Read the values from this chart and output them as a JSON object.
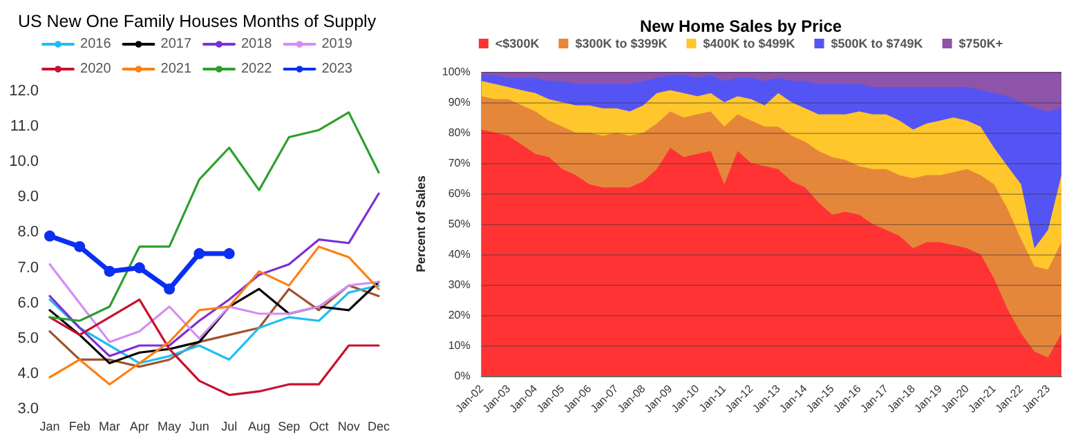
{
  "chart_data": [
    {
      "type": "line",
      "title": "US New One Family Houses Months of Supply",
      "categories": [
        "Jan",
        "Feb",
        "Mar",
        "Apr",
        "May",
        "Jun",
        "Jul",
        "Aug",
        "Sep",
        "Oct",
        "Nov",
        "Dec"
      ],
      "ylim": [
        3,
        12
      ],
      "yticks": [
        {
          "value": 3,
          "label": "3.0"
        },
        {
          "value": 4,
          "label": "4.0"
        },
        {
          "value": 5,
          "label": "5.0"
        },
        {
          "value": 6,
          "label": "6.0"
        },
        {
          "value": 7,
          "label": "7.0"
        },
        {
          "value": 8,
          "label": "8.0"
        },
        {
          "value": 9,
          "label": "9.0"
        },
        {
          "value": 10,
          "label": "10.0"
        },
        {
          "value": 11,
          "label": "11.0"
        },
        {
          "value": 12,
          "label": "12.0"
        }
      ],
      "grid": false,
      "legend": "top",
      "marker": "none",
      "line_style": "solid",
      "series": [
        {
          "color": "#a0522d",
          "values": [
            5.2,
            4.4,
            4.4,
            4.2,
            4.4,
            4.9,
            5.1,
            5.3,
            6.4,
            5.8,
            6.5,
            6.2
          ]
        },
        {
          "name": "2016",
          "color": "#1ebfef",
          "values": [
            6.1,
            5.3,
            4.8,
            4.3,
            4.5,
            4.8,
            4.4,
            5.3,
            5.6,
            5.5,
            6.3,
            6.5
          ]
        },
        {
          "name": "2017",
          "color": "#000000",
          "values": [
            5.8,
            5.1,
            4.3,
            4.6,
            4.7,
            4.9,
            5.9,
            6.4,
            5.7,
            5.9,
            5.8,
            6.6
          ]
        },
        {
          "name": "2018",
          "color": "#7b2fd6",
          "values": [
            6.2,
            5.3,
            4.5,
            4.8,
            4.8,
            5.5,
            6.1,
            6.8,
            7.1,
            7.8,
            7.7,
            9.1
          ]
        },
        {
          "name": "2019",
          "color": "#d58cf5",
          "values": [
            7.1,
            6.0,
            4.9,
            5.2,
            5.9,
            5.0,
            5.9,
            5.7,
            5.7,
            5.9,
            6.5,
            6.6
          ]
        },
        {
          "name": "2020",
          "color": "#c8102e",
          "values": [
            5.6,
            5.1,
            5.6,
            6.1,
            4.7,
            3.8,
            3.4,
            3.5,
            3.7,
            3.7,
            4.8,
            4.8
          ]
        },
        {
          "name": "2021",
          "color": "#ff7f0e",
          "values": [
            3.9,
            4.4,
            3.7,
            4.3,
            4.9,
            5.8,
            5.9,
            6.9,
            6.5,
            7.6,
            7.3,
            6.4
          ]
        },
        {
          "name": "2022",
          "color": "#2ca02c",
          "values": [
            5.6,
            5.5,
            5.9,
            7.6,
            7.6,
            9.5,
            10.4,
            9.2,
            10.7,
            10.9,
            11.4,
            9.7
          ]
        },
        {
          "name": "2023",
          "color": "#0a2ff0",
          "marker": "circle",
          "values": [
            7.9,
            7.6,
            6.9,
            7.0,
            6.4,
            7.4,
            7.4,
            null,
            null,
            null,
            null,
            null
          ]
        }
      ]
    },
    {
      "type": "area",
      "stacked": true,
      "title": "New Home Sales by Price",
      "ylabel": "Percent of Sales",
      "grid": true,
      "legend": "top",
      "x": [
        "2002-01",
        "2002-07",
        "2003-01",
        "2003-07",
        "2004-01",
        "2004-07",
        "2005-01",
        "2005-07",
        "2006-01",
        "2006-07",
        "2007-01",
        "2007-07",
        "2008-01",
        "2008-07",
        "2009-01",
        "2009-07",
        "2010-01",
        "2010-07",
        "2011-01",
        "2011-07",
        "2012-01",
        "2012-07",
        "2013-01",
        "2013-07",
        "2014-01",
        "2014-07",
        "2015-01",
        "2015-07",
        "2016-01",
        "2016-07",
        "2017-01",
        "2017-07",
        "2018-01",
        "2018-07",
        "2019-01",
        "2019-07",
        "2020-01",
        "2020-07",
        "2021-01",
        "2021-07",
        "2022-01",
        "2022-07",
        "2023-01",
        "2023-07"
      ],
      "xlim": [
        "2002-01",
        "2023-07"
      ],
      "xticks": [
        {
          "value": "2002-01",
          "label": "Jan-02"
        },
        {
          "value": "2003-01",
          "label": "Jan-03"
        },
        {
          "value": "2004-01",
          "label": "Jan-04"
        },
        {
          "value": "2005-01",
          "label": "Jan-05"
        },
        {
          "value": "2006-01",
          "label": "Jan-06"
        },
        {
          "value": "2007-01",
          "label": "Jan-07"
        },
        {
          "value": "2008-01",
          "label": "Jan-08"
        },
        {
          "value": "2009-01",
          "label": "Jan-09"
        },
        {
          "value": "2010-01",
          "label": "Jan-10"
        },
        {
          "value": "2011-01",
          "label": "Jan-11"
        },
        {
          "value": "2012-01",
          "label": "Jan-12"
        },
        {
          "value": "2013-01",
          "label": "Jan-13"
        },
        {
          "value": "2014-01",
          "label": "Jan-14"
        },
        {
          "value": "2015-01",
          "label": "Jan-15"
        },
        {
          "value": "2016-01",
          "label": "Jan-16"
        },
        {
          "value": "2017-01",
          "label": "Jan-17"
        },
        {
          "value": "2018-01",
          "label": "Jan-18"
        },
        {
          "value": "2019-01",
          "label": "Jan-19"
        },
        {
          "value": "2020-01",
          "label": "Jan-20"
        },
        {
          "value": "2021-01",
          "label": "Jan-21"
        },
        {
          "value": "2022-01",
          "label": "Jan-22"
        },
        {
          "value": "2023-01",
          "label": "Jan-23"
        }
      ],
      "ylim": [
        0,
        100
      ],
      "yticks": [
        {
          "value": 0,
          "label": "0%"
        },
        {
          "value": 10,
          "label": "10%"
        },
        {
          "value": 20,
          "label": "20%"
        },
        {
          "value": 30,
          "label": "30%"
        },
        {
          "value": 40,
          "label": "40%"
        },
        {
          "value": 50,
          "label": "50%"
        },
        {
          "value": 60,
          "label": "60%"
        },
        {
          "value": 70,
          "label": "70%"
        },
        {
          "value": 80,
          "label": "80%"
        },
        {
          "value": 90,
          "label": "90%"
        },
        {
          "value": 100,
          "label": "100%"
        }
      ],
      "series": [
        {
          "name": "<$300K",
          "color": "#ff3333",
          "values": [
            81,
            80,
            79,
            76,
            73,
            72,
            68,
            66,
            63,
            62,
            62,
            62,
            64,
            68,
            75,
            72,
            73,
            74,
            63,
            74,
            70,
            69,
            68,
            64,
            62,
            57,
            53,
            54,
            53,
            50,
            48,
            46,
            42,
            44,
            44,
            43,
            42,
            40,
            32,
            22,
            14,
            8,
            6,
            14
          ]
        },
        {
          "name": "$300K to $399K",
          "color": "#e5873a",
          "values": [
            11,
            11,
            12,
            13,
            14,
            12,
            14,
            14,
            17,
            17,
            18,
            17,
            16,
            15,
            12,
            13,
            13,
            13,
            19,
            12,
            14,
            13,
            14,
            15,
            15,
            17,
            19,
            17,
            16,
            18,
            20,
            20,
            23,
            22,
            22,
            24,
            26,
            26,
            31,
            33,
            31,
            28,
            29,
            30
          ]
        },
        {
          "name": "$400K to $499K",
          "color": "#ffc72c",
          "values": [
            5,
            5,
            4,
            5,
            6,
            7,
            8,
            9,
            9,
            9,
            8,
            8,
            9,
            10,
            7,
            8,
            6,
            6,
            8,
            6,
            7,
            7,
            11,
            11,
            11,
            12,
            14,
            15,
            18,
            18,
            18,
            18,
            16,
            17,
            18,
            18,
            16,
            16,
            12,
            14,
            18,
            6,
            13,
            22
          ]
        },
        {
          "name": "$500K to $749K",
          "color": "#5454f5",
          "values": [
            2,
            3,
            3,
            4,
            5,
            6,
            7,
            7,
            7,
            8,
            8,
            9,
            8,
            5,
            5,
            6,
            6,
            6,
            7,
            6,
            7,
            8,
            5,
            7,
            9,
            10,
            10,
            10,
            9,
            9,
            9,
            11,
            14,
            12,
            11,
            10,
            11,
            12,
            18,
            23,
            27,
            46,
            39,
            22
          ]
        },
        {
          "name": "$750K+",
          "color": "#8e54a9",
          "values": [
            1,
            1,
            2,
            2,
            2,
            3,
            3,
            4,
            4,
            4,
            4,
            4,
            3,
            2,
            1,
            1,
            2,
            1,
            3,
            2,
            2,
            3,
            2,
            3,
            3,
            4,
            4,
            4,
            4,
            5,
            5,
            5,
            5,
            5,
            5,
            5,
            5,
            6,
            7,
            8,
            10,
            12,
            13,
            12
          ]
        }
      ]
    }
  ]
}
